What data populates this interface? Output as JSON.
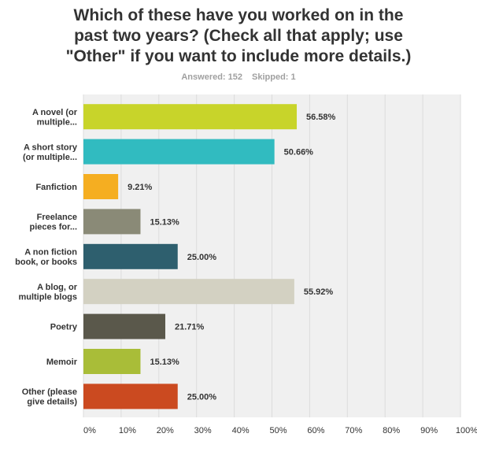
{
  "title": "Which of these have you worked on in the past two years? (Check all that apply; use \"Other\" if you want to include more details.)",
  "title_lines": [
    "Which of these have you worked on in the",
    "past two years? (Check all that apply; use",
    "\"Other\" if you want to include more details.)"
  ],
  "stats": {
    "answered": "Answered: 152",
    "skipped": "Skipped: 1"
  },
  "chart_data": {
    "type": "bar",
    "orientation": "horizontal",
    "grid": true,
    "xlim": [
      0,
      100
    ],
    "x_ticks": [
      "0%",
      "10%",
      "20%",
      "30%",
      "40%",
      "50%",
      "60%",
      "70%",
      "80%",
      "90%",
      "100%"
    ],
    "categories": [
      [
        "A novel (or",
        "multiple..."
      ],
      [
        "A short story",
        "(or multiple..."
      ],
      [
        "Fanfiction"
      ],
      [
        "Freelance",
        "pieces for..."
      ],
      [
        "A non fiction",
        "book, or books"
      ],
      [
        "A blog, or",
        "multiple blogs"
      ],
      [
        "Poetry"
      ],
      [
        "Memoir"
      ],
      [
        "Other (please",
        "give details)"
      ]
    ],
    "values": [
      56.58,
      50.66,
      9.21,
      15.13,
      25.0,
      55.92,
      21.71,
      15.13,
      25.0
    ],
    "value_labels": [
      "56.58%",
      "50.66%",
      "9.21%",
      "15.13%",
      "25.00%",
      "55.92%",
      "21.71%",
      "15.13%",
      "25.00%"
    ],
    "colors": [
      "#c8d42a",
      "#31bbc0",
      "#f5ae21",
      "#8a8a77",
      "#2e5f6e",
      "#d3d1c2",
      "#5a584b",
      "#a9bd38",
      "#cb4a20"
    ],
    "plot_background": "#f0f0f0"
  }
}
